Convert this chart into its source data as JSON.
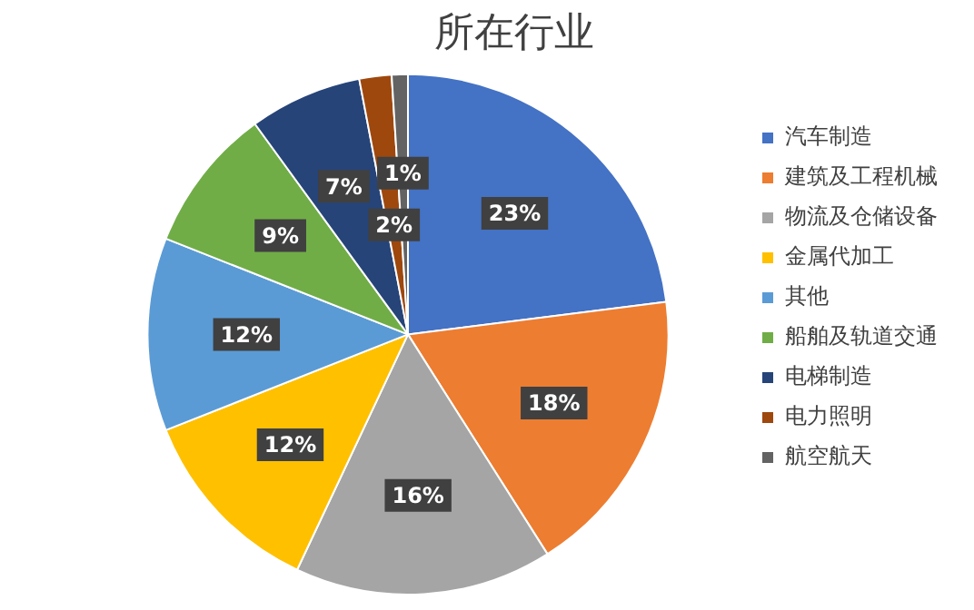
{
  "chart_data": {
    "type": "pie",
    "title": "所在行业",
    "categories": [
      "汽车制造",
      "建筑及工程机械",
      "物流及仓储设备",
      "金属代加工",
      "其他",
      "船舶及轨道交通",
      "电梯制造",
      "电力照明",
      "航空航天"
    ],
    "values": [
      23,
      18,
      16,
      12,
      12,
      9,
      7,
      2,
      1
    ],
    "value_labels": [
      "23%",
      "18%",
      "16%",
      "12%",
      "12%",
      "9%",
      "7%",
      "2%",
      "1%"
    ],
    "colors": [
      "#4472c4",
      "#ed7d31",
      "#a5a5a5",
      "#ffc000",
      "#5b9bd5",
      "#70ad47",
      "#264478",
      "#9e480e",
      "#636363"
    ],
    "legend": "right"
  }
}
